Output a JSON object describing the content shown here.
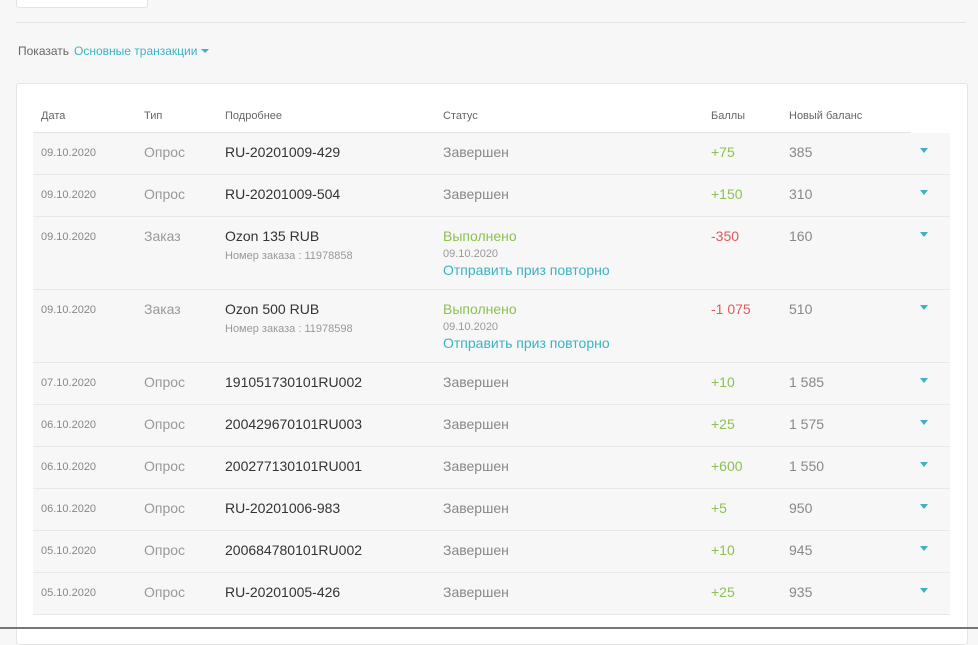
{
  "filter": {
    "label": "Показать",
    "value": "Основные транзакции"
  },
  "columns": {
    "date": "Дата",
    "type": "Тип",
    "details": "Подробнее",
    "status": "Статус",
    "points": "Баллы",
    "balance": "Новый баланс"
  },
  "rows": [
    {
      "date": "09.10.2020",
      "type": "Опрос",
      "detail": "RU-20201009-429",
      "status": "Завершен",
      "points": "+75",
      "balance": "385"
    },
    {
      "date": "09.10.2020",
      "type": "Опрос",
      "detail": "RU-20201009-504",
      "status": "Завершен",
      "points": "+150",
      "balance": "310"
    },
    {
      "date": "09.10.2020",
      "type": "Заказ",
      "detail": "Ozon 135 RUB",
      "order": "Номер заказа : 11978858",
      "status": "Выполнено",
      "status_date": "09.10.2020",
      "resend": "Отправить приз повторно",
      "points": "-350",
      "balance": "160"
    },
    {
      "date": "09.10.2020",
      "type": "Заказ",
      "detail": "Ozon 500 RUB",
      "order": "Номер заказа : 11978598",
      "status": "Выполнено",
      "status_date": "09.10.2020",
      "resend": "Отправить приз повторно",
      "points": "-1 075",
      "balance": "510"
    },
    {
      "date": "07.10.2020",
      "type": "Опрос",
      "detail": "191051730101RU002",
      "status": "Завершен",
      "points": "+10",
      "balance": "1 585"
    },
    {
      "date": "06.10.2020",
      "type": "Опрос",
      "detail": "200429670101RU003",
      "status": "Завершен",
      "points": "+25",
      "balance": "1 575"
    },
    {
      "date": "06.10.2020",
      "type": "Опрос",
      "detail": "200277130101RU001",
      "status": "Завершен",
      "points": "+600",
      "balance": "1 550"
    },
    {
      "date": "06.10.2020",
      "type": "Опрос",
      "detail": "RU-20201006-983",
      "status": "Завершен",
      "points": "+5",
      "balance": "950"
    },
    {
      "date": "05.10.2020",
      "type": "Опрос",
      "detail": "200684780101RU002",
      "status": "Завершен",
      "points": "+10",
      "balance": "945"
    },
    {
      "date": "05.10.2020",
      "type": "Опрос",
      "detail": "RU-20201005-426",
      "status": "Завершен",
      "points": "+25",
      "balance": "935"
    }
  ],
  "colors": {
    "accent": "#3bb3c3",
    "positive": "#8cc152",
    "negative": "#e05a5a"
  }
}
